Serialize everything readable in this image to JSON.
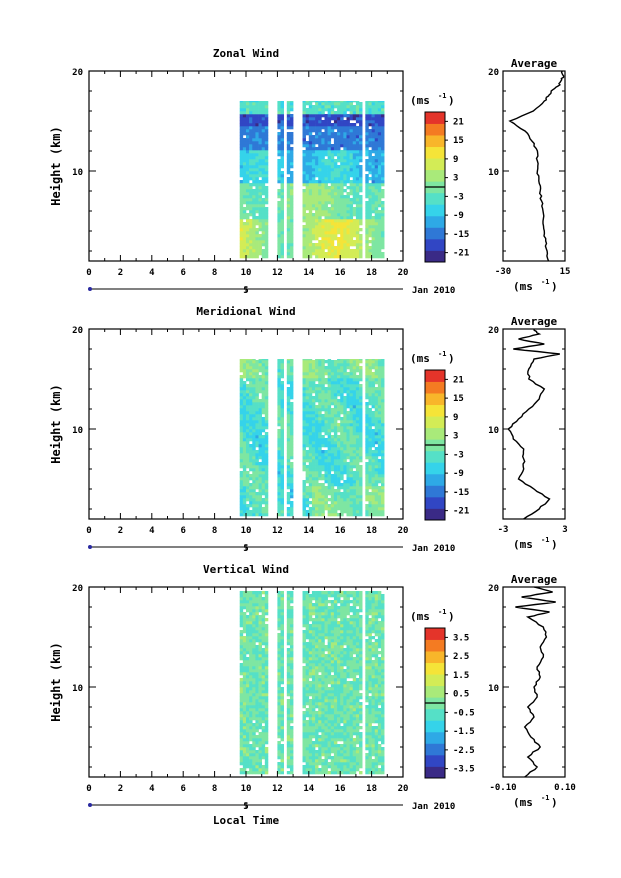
{
  "chart_data": [
    {
      "type": "heatmap",
      "title": "Zonal Wind",
      "xlabel": "",
      "ylabel": "Height (km)",
      "xlim": [
        0,
        20
      ],
      "ylim": [
        1,
        20
      ],
      "x_ticks": [
        "0",
        "2",
        "4",
        "6",
        "8",
        "10",
        "12",
        "14",
        "16",
        "18",
        "20"
      ],
      "y_ticks": [
        "10",
        "20"
      ],
      "day_marker": "5",
      "month_label": "Jan 2010",
      "colorbar": {
        "unit_label": "(ms",
        "unit_sup": "-1",
        "unit_close": ")",
        "ticks": [
          "21",
          "15",
          "9",
          "3",
          "-3",
          "-9",
          "-15",
          "-21"
        ],
        "range": [
          -24,
          24
        ]
      },
      "data_extent": {
        "t_start": 9.6,
        "t_end": 18.8,
        "z_top": 17.0,
        "gaps": [
          [
            11.3,
            11.9
          ],
          [
            12.4,
            12.6
          ],
          [
            13.0,
            13.6
          ],
          [
            17.3,
            17.6
          ]
        ]
      },
      "profile": {
        "title": "Average",
        "xlim": [
          -30,
          15
        ],
        "x_ticks": [
          "-30",
          "15"
        ],
        "y_ticks": [
          "10",
          "20"
        ],
        "unit": "(ms",
        "unit_sup": "-1",
        "unit_close": ")",
        "z": [
          1,
          2,
          3,
          4,
          5,
          6,
          7,
          8,
          9,
          10,
          11,
          12,
          13,
          14,
          15,
          16,
          17,
          17.5,
          18,
          18.5,
          19,
          19.5,
          20
        ],
        "values": [
          3,
          2,
          1,
          0,
          -1,
          -1,
          -2,
          -3,
          -4,
          -5,
          -5,
          -5,
          -9,
          -14,
          -25,
          -8,
          0,
          3,
          5,
          10,
          12,
          14,
          13
        ]
      }
    },
    {
      "type": "heatmap",
      "title": "Meridional Wind",
      "xlabel": "",
      "ylabel": "Height (km)",
      "xlim": [
        0,
        20
      ],
      "ylim": [
        1,
        20
      ],
      "x_ticks": [
        "0",
        "2",
        "4",
        "6",
        "8",
        "10",
        "12",
        "14",
        "16",
        "18",
        "20"
      ],
      "y_ticks": [
        "10",
        "20"
      ],
      "day_marker": "5",
      "month_label": "Jan 2010",
      "colorbar": {
        "unit_label": "(ms",
        "unit_sup": "-1",
        "unit_close": ")",
        "ticks": [
          "21",
          "15",
          "9",
          "3",
          "-3",
          "-9",
          "-15",
          "-21"
        ],
        "range": [
          -24,
          24
        ]
      },
      "data_extent": {
        "t_start": 9.6,
        "t_end": 18.8,
        "z_top": 17.0,
        "gaps": [
          [
            11.3,
            11.9
          ],
          [
            12.4,
            12.6
          ],
          [
            13.0,
            13.6
          ],
          [
            17.3,
            17.6
          ]
        ]
      },
      "profile": {
        "title": "Average",
        "xlim": [
          -3,
          3
        ],
        "x_ticks": [
          "-3",
          "3"
        ],
        "y_ticks": [
          "10",
          "20"
        ],
        "unit": "(ms",
        "unit_sup": "-1",
        "unit_close": ")",
        "z": [
          1,
          2,
          3,
          4,
          5,
          6,
          7,
          8,
          9,
          10,
          11,
          12,
          13,
          14,
          15,
          16,
          17,
          17.5,
          18,
          18.5,
          19,
          19.5,
          20
        ],
        "values": [
          -1,
          0.5,
          1.5,
          0,
          -1.5,
          -1,
          -1,
          -1,
          -2,
          -2.5,
          -1.5,
          -0.5,
          0.5,
          1,
          -0.5,
          -0.5,
          0,
          2.5,
          -2,
          1,
          -1.5,
          0.5,
          0
        ]
      }
    },
    {
      "type": "heatmap",
      "title": "Vertical Wind",
      "xlabel": "Local Time",
      "ylabel": "Height (km)",
      "xlim": [
        0,
        20
      ],
      "ylim": [
        1,
        20
      ],
      "x_ticks": [
        "0",
        "2",
        "4",
        "6",
        "8",
        "10",
        "12",
        "14",
        "16",
        "18",
        "20"
      ],
      "y_ticks": [
        "10",
        "20"
      ],
      "day_marker": "5",
      "month_label": "Jan 2010",
      "colorbar": {
        "unit_label": "(ms",
        "unit_sup": "-1",
        "unit_close": ")",
        "ticks": [
          "3.5",
          "2.5",
          "1.5",
          "0.5",
          "-0.5",
          "-1.5",
          "-2.5",
          "-3.5"
        ],
        "range": [
          -4,
          4
        ]
      },
      "data_extent": {
        "t_start": 9.6,
        "t_end": 18.8,
        "z_top": 19.6,
        "gaps": [
          [
            11.3,
            11.9
          ],
          [
            12.4,
            12.6
          ],
          [
            13.0,
            13.6
          ],
          [
            17.3,
            17.6
          ]
        ]
      },
      "profile": {
        "title": "Average",
        "xlim": [
          -0.1,
          0.1
        ],
        "x_ticks": [
          "-0.10",
          "0.10"
        ],
        "y_ticks": [
          "10",
          "20"
        ],
        "unit": "(ms",
        "unit_sup": "-1",
        "unit_close": ")",
        "z": [
          1,
          2,
          3,
          4,
          5,
          6,
          7,
          8,
          9,
          10,
          11,
          12,
          13,
          14,
          15,
          16,
          17,
          17.5,
          18,
          18.5,
          19,
          19.5,
          20
        ],
        "values": [
          -0.03,
          0.01,
          -0.02,
          0.02,
          -0.01,
          -0.03,
          0.0,
          -0.02,
          0.01,
          0.0,
          0.02,
          0.01,
          0.03,
          0.02,
          0.04,
          0.03,
          -0.02,
          0.05,
          -0.06,
          0.07,
          -0.04,
          0.06,
          0.0
        ]
      }
    }
  ]
}
